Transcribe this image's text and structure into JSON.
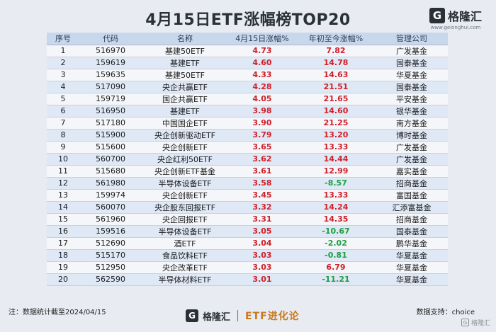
{
  "title": "4月15日ETF涨幅榜TOP20",
  "logo": {
    "name": "格隆汇",
    "url": "www.gelonghui.com",
    "mark": "G"
  },
  "table": {
    "headers": [
      "序号",
      "代码",
      "名称",
      "4月15日涨幅%",
      "年初至今涨幅%",
      "管理公司"
    ],
    "rows": [
      {
        "no": "1",
        "code": "516970",
        "name": "基建50ETF",
        "today": "4.73",
        "ytd": "7.82",
        "ytd_sign": "pos",
        "manager": "广发基金"
      },
      {
        "no": "2",
        "code": "159619",
        "name": "基建ETF",
        "today": "4.60",
        "ytd": "14.78",
        "ytd_sign": "pos",
        "manager": "国泰基金"
      },
      {
        "no": "3",
        "code": "159635",
        "name": "基建50ETF",
        "today": "4.33",
        "ytd": "14.63",
        "ytd_sign": "pos",
        "manager": "华夏基金"
      },
      {
        "no": "4",
        "code": "517090",
        "name": "央企共赢ETF",
        "today": "4.28",
        "ytd": "21.51",
        "ytd_sign": "pos",
        "manager": "国泰基金"
      },
      {
        "no": "5",
        "code": "159719",
        "name": "国企共赢ETF",
        "today": "4.05",
        "ytd": "21.65",
        "ytd_sign": "pos",
        "manager": "平安基金"
      },
      {
        "no": "6",
        "code": "516950",
        "name": "基建ETF",
        "today": "3.98",
        "ytd": "14.60",
        "ytd_sign": "pos",
        "manager": "银华基金"
      },
      {
        "no": "7",
        "code": "517180",
        "name": "中国国企ETF",
        "today": "3.90",
        "ytd": "21.25",
        "ytd_sign": "pos",
        "manager": "南方基金"
      },
      {
        "no": "8",
        "code": "515900",
        "name": "央企创新驱动ETF",
        "today": "3.79",
        "ytd": "13.20",
        "ytd_sign": "pos",
        "manager": "博时基金"
      },
      {
        "no": "9",
        "code": "515600",
        "name": "央企创新ETF",
        "today": "3.65",
        "ytd": "13.33",
        "ytd_sign": "pos",
        "manager": "广发基金"
      },
      {
        "no": "10",
        "code": "560700",
        "name": "央企红利50ETF",
        "today": "3.62",
        "ytd": "14.44",
        "ytd_sign": "pos",
        "manager": "广发基金"
      },
      {
        "no": "11",
        "code": "515680",
        "name": "央企创新ETF基金",
        "today": "3.61",
        "ytd": "12.99",
        "ytd_sign": "pos",
        "manager": "嘉实基金"
      },
      {
        "no": "12",
        "code": "561980",
        "name": "半导体设备ETF",
        "today": "3.58",
        "ytd": "-8.57",
        "ytd_sign": "neg",
        "manager": "招商基金"
      },
      {
        "no": "13",
        "code": "159974",
        "name": "央企创新ETF",
        "today": "3.45",
        "ytd": "13.33",
        "ytd_sign": "pos",
        "manager": "富国基金"
      },
      {
        "no": "14",
        "code": "560070",
        "name": "央企股东回报ETF",
        "today": "3.32",
        "ytd": "14.24",
        "ytd_sign": "pos",
        "manager": "汇添富基金"
      },
      {
        "no": "15",
        "code": "561960",
        "name": "央企回报ETF",
        "today": "3.31",
        "ytd": "14.35",
        "ytd_sign": "pos",
        "manager": "招商基金"
      },
      {
        "no": "16",
        "code": "159516",
        "name": "半导体设备ETF",
        "today": "3.05",
        "ytd": "-10.67",
        "ytd_sign": "neg",
        "manager": "国泰基金"
      },
      {
        "no": "17",
        "code": "512690",
        "name": "酒ETF",
        "today": "3.04",
        "ytd": "-2.02",
        "ytd_sign": "neg",
        "manager": "鹏华基金"
      },
      {
        "no": "18",
        "code": "515170",
        "name": "食品饮料ETF",
        "today": "3.03",
        "ytd": "-0.81",
        "ytd_sign": "neg",
        "manager": "华夏基金"
      },
      {
        "no": "19",
        "code": "512950",
        "name": "央企改革ETF",
        "today": "3.03",
        "ytd": "6.79",
        "ytd_sign": "pos",
        "manager": "华夏基金"
      },
      {
        "no": "20",
        "code": "562590",
        "name": "半导体材料ETF",
        "today": "3.01",
        "ytd": "-11.21",
        "ytd_sign": "neg",
        "manager": "华夏基金"
      }
    ]
  },
  "footer": {
    "note": "注：数据统计截至2024/04/15",
    "brand": "格隆汇",
    "brand_mark": "G",
    "sub_brand": "ETF进化论",
    "source": "数据支持：choice"
  },
  "watermark": {
    "text": "格隆汇",
    "mark": "G"
  },
  "colors": {
    "positive": "#d0202a",
    "negative": "#1e9e44",
    "header_bg": "#c9d7ec",
    "row_alt": "#dfe8f5"
  }
}
